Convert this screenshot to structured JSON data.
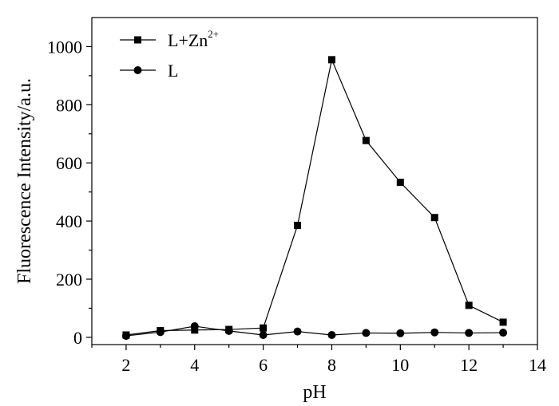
{
  "chart_data": {
    "type": "line",
    "title": "",
    "xlabel": "pH",
    "ylabel": "Fluorescence Intensity/a.u.",
    "xlim": [
      1,
      14
    ],
    "ylim": [
      -25,
      1100
    ],
    "xticks": [
      2,
      4,
      6,
      8,
      10,
      12,
      14
    ],
    "xticks_minor": [
      1,
      3,
      5,
      7,
      9,
      11,
      13
    ],
    "yticks": [
      0,
      200,
      400,
      600,
      800,
      1000
    ],
    "yticks_minor": [
      100,
      300,
      500,
      700,
      900
    ],
    "grid": false,
    "legend_position": "top-left",
    "x": [
      2,
      3,
      4,
      5,
      6,
      7,
      8,
      9,
      10,
      11,
      12,
      13
    ],
    "series": [
      {
        "name": "L+Zn",
        "name_sup": "2+",
        "marker": "square",
        "color": "#000000",
        "values": [
          8,
          23,
          25,
          27,
          32,
          385,
          955,
          677,
          533,
          412,
          110,
          52
        ]
      },
      {
        "name": "L",
        "marker": "circle",
        "color": "#000000",
        "values": [
          5,
          18,
          38,
          22,
          8,
          20,
          8,
          15,
          14,
          17,
          15,
          16
        ]
      }
    ]
  }
}
